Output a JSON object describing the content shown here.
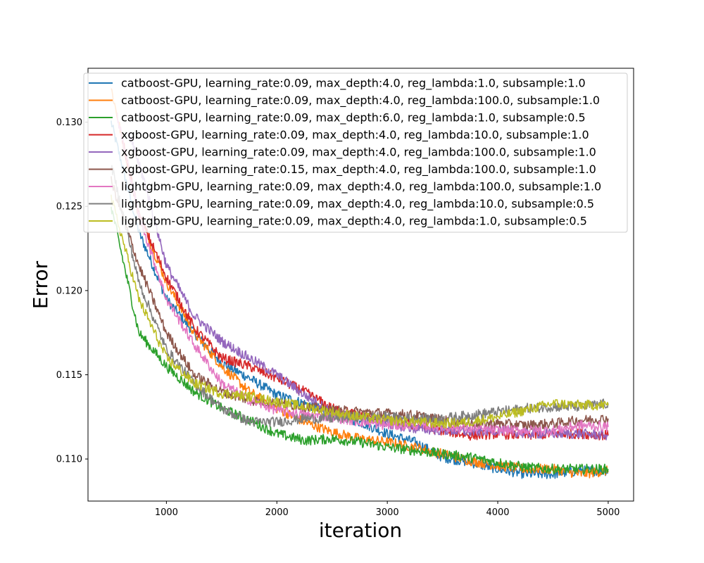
{
  "chart_data": {
    "type": "line",
    "title": "",
    "xlabel": "iteration",
    "ylabel": "Error",
    "xlim": [
      290,
      5230
    ],
    "ylim": [
      0.1075,
      0.1332
    ],
    "x_ticks": [
      1000,
      2000,
      3000,
      4000,
      5000
    ],
    "x_tick_labels": [
      "1000",
      "2000",
      "3000",
      "4000",
      "5000"
    ],
    "y_ticks": [
      0.11,
      0.115,
      0.12,
      0.125,
      0.13
    ],
    "y_tick_labels": [
      "0.110",
      "0.115",
      "0.120",
      "0.125",
      "0.130"
    ],
    "grid": false,
    "legend_position": "top",
    "series": [
      {
        "name": "catboost-GPU, learning_rate:0.09, max_depth:4.0, reg_lambda:1.0, subsample:1.0",
        "color": "#1f77b4",
        "x": [
          500,
          750,
          1000,
          1250,
          1500,
          1750,
          2000,
          2250,
          2500,
          2750,
          3000,
          3250,
          3500,
          3750,
          4000,
          4250,
          4500,
          4750,
          5000
        ],
        "y": [
          0.13,
          0.1235,
          0.1195,
          0.1175,
          0.1157,
          0.1148,
          0.1138,
          0.1133,
          0.1127,
          0.1122,
          0.1115,
          0.111,
          0.1101,
          0.1098,
          0.1094,
          0.1091,
          0.1091,
          0.1093,
          0.1093
        ]
      },
      {
        "name": "catboost-GPU, learning_rate:0.09, max_depth:4.0, reg_lambda:100.0, subsample:1.0",
        "color": "#ff7f0e",
        "x": [
          500,
          750,
          1000,
          1250,
          1500,
          1750,
          2000,
          2250,
          2500,
          2750,
          3000,
          3250,
          3500,
          3750,
          4000,
          4250,
          4500,
          4750,
          5000
        ],
        "y": [
          0.132,
          0.1245,
          0.1205,
          0.1175,
          0.1155,
          0.114,
          0.113,
          0.1122,
          0.1116,
          0.1112,
          0.111,
          0.1107,
          0.1103,
          0.1099,
          0.1096,
          0.1094,
          0.1094,
          0.1091,
          0.1093
        ]
      },
      {
        "name": "catboost-GPU, learning_rate:0.09, max_depth:6.0, reg_lambda:1.0, subsample:0.5",
        "color": "#2ca02c",
        "x": [
          500,
          750,
          1000,
          1250,
          1500,
          1750,
          2000,
          2250,
          2500,
          2750,
          3000,
          3250,
          3500,
          3750,
          4000,
          4250,
          4500,
          4750,
          5000
        ],
        "y": [
          0.125,
          0.1175,
          0.1155,
          0.114,
          0.113,
          0.1123,
          0.1115,
          0.1111,
          0.1112,
          0.111,
          0.1107,
          0.1105,
          0.1103,
          0.1101,
          0.1098,
          0.1095,
          0.1094,
          0.1094,
          0.1094
        ]
      },
      {
        "name": "xgboost-GPU, learning_rate:0.09, max_depth:4.0, reg_lambda:10.0, subsample:1.0",
        "color": "#d62728",
        "x": [
          600,
          750,
          1000,
          1250,
          1500,
          1750,
          2000,
          2250,
          2500,
          2750,
          3000,
          3250,
          3500,
          3750,
          4000,
          4250,
          4500,
          4750,
          5000
        ],
        "y": [
          0.129,
          0.1245,
          0.1208,
          0.1178,
          0.116,
          0.1155,
          0.1148,
          0.114,
          0.113,
          0.1126,
          0.1123,
          0.112,
          0.1117,
          0.1114,
          0.1115,
          0.1114,
          0.1115,
          0.1115,
          0.1114
        ]
      },
      {
        "name": "xgboost-GPU, learning_rate:0.09, max_depth:4.0, reg_lambda:100.0, subsample:1.0",
        "color": "#9467bd",
        "x": [
          650,
          800,
          1000,
          1250,
          1500,
          1750,
          2000,
          2250,
          2500,
          2750,
          3000,
          3250,
          3500,
          3750,
          4000,
          4250,
          4500,
          4750,
          5000
        ],
        "y": [
          0.1295,
          0.1265,
          0.1215,
          0.1185,
          0.117,
          0.116,
          0.115,
          0.1138,
          0.1128,
          0.1124,
          0.1121,
          0.1118,
          0.1117,
          0.1116,
          0.1117,
          0.1115,
          0.1115,
          0.1115,
          0.1114
        ]
      },
      {
        "name": "xgboost-GPU, learning_rate:0.15, max_depth:4.0, reg_lambda:100.0, subsample:1.0",
        "color": "#8c564b",
        "x": [
          500,
          750,
          1000,
          1250,
          1500,
          1750,
          2000,
          2250,
          2500,
          2750,
          3000,
          3250,
          3500,
          3750,
          4000,
          4250,
          4500,
          4750,
          5000
        ],
        "y": [
          0.1265,
          0.1215,
          0.1175,
          0.115,
          0.114,
          0.1135,
          0.1133,
          0.1131,
          0.1129,
          0.1128,
          0.1127,
          0.1126,
          0.1123,
          0.1121,
          0.1121,
          0.112,
          0.1121,
          0.1123,
          0.1124
        ]
      },
      {
        "name": "lightgbm-GPU, learning_rate:0.09, max_depth:4.0, reg_lambda:100.0, subsample:1.0",
        "color": "#e377c2",
        "x": [
          550,
          750,
          1000,
          1250,
          1500,
          1750,
          2000,
          2250,
          2500,
          2750,
          3000,
          3250,
          3500,
          3750,
          4000,
          4250,
          4500,
          4750,
          5000
        ],
        "y": [
          0.1305,
          0.1245,
          0.1195,
          0.1168,
          0.1145,
          0.1135,
          0.1129,
          0.1126,
          0.1125,
          0.1122,
          0.112,
          0.112,
          0.1119,
          0.1118,
          0.1117,
          0.1117,
          0.1117,
          0.112,
          0.1119
        ]
      },
      {
        "name": "lightgbm-GPU, learning_rate:0.09, max_depth:4.0, reg_lambda:10.0, subsample:0.5",
        "color": "#7f7f7f",
        "x": [
          500,
          750,
          1000,
          1250,
          1500,
          1750,
          2000,
          2250,
          2500,
          2750,
          3000,
          3250,
          3500,
          3750,
          4000,
          4250,
          4500,
          4750,
          5000
        ],
        "y": [
          0.1275,
          0.1205,
          0.1165,
          0.1145,
          0.113,
          0.1122,
          0.1122,
          0.1124,
          0.1124,
          0.1125,
          0.1125,
          0.1124,
          0.1124,
          0.1126,
          0.1128,
          0.113,
          0.1131,
          0.1131,
          0.1133
        ]
      },
      {
        "name": "lightgbm-GPU, learning_rate:0.09, max_depth:4.0, reg_lambda:1.0, subsample:0.5",
        "color": "#bcbd22",
        "x": [
          500,
          750,
          1000,
          1250,
          1500,
          1750,
          2000,
          2250,
          2500,
          2750,
          3000,
          3250,
          3500,
          3750,
          4000,
          4250,
          4500,
          4750,
          5000
        ],
        "y": [
          0.1255,
          0.1195,
          0.116,
          0.1145,
          0.1139,
          0.1137,
          0.1134,
          0.1131,
          0.1128,
          0.1125,
          0.1123,
          0.1122,
          0.1121,
          0.1122,
          0.1125,
          0.1129,
          0.1133,
          0.1132,
          0.1132
        ]
      }
    ]
  }
}
